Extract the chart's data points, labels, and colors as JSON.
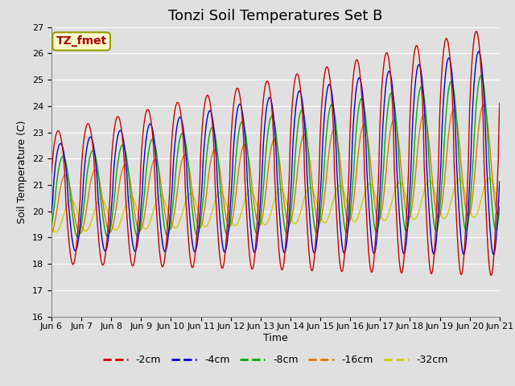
{
  "title": "Tonzi Soil Temperatures Set B",
  "xlabel": "Time",
  "ylabel": "Soil Temperature (C)",
  "ylim": [
    16.0,
    27.0
  ],
  "yticks": [
    16.0,
    17.0,
    18.0,
    19.0,
    20.0,
    21.0,
    22.0,
    23.0,
    24.0,
    25.0,
    26.0,
    27.0
  ],
  "xtick_labels": [
    "Jun 6",
    "Jun 7",
    "Jun 8",
    "Jun 9",
    "Jun 10",
    "Jun 11",
    "Jun 12",
    "Jun 13",
    "Jun 14",
    "Jun 15",
    "Jun 16",
    "Jun 17",
    "Jun 18",
    "Jun 19",
    "Jun 20",
    "Jun 21"
  ],
  "legend_labels": [
    "-2cm",
    "-4cm",
    "-8cm",
    "-16cm",
    "-32cm"
  ],
  "line_colors": [
    "#cc0000",
    "#0000cc",
    "#00aa00",
    "#dd7700",
    "#cccc00"
  ],
  "annotation_text": "TZ_fmet",
  "annotation_color": "#aa0000",
  "annotation_bg": "#ffffcc",
  "annotation_border": "#999900",
  "bg_color": "#e0e0e0",
  "grid_color": "#ffffff",
  "title_fontsize": 13,
  "axis_fontsize": 9,
  "tick_fontsize": 8,
  "legend_fontsize": 9
}
